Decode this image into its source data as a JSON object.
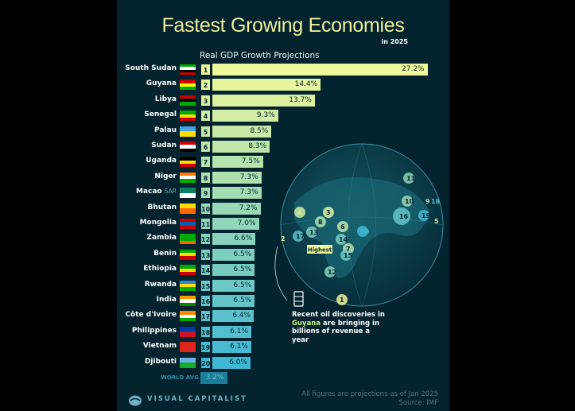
{
  "header": {
    "title": "Fastest Growing Economies",
    "subtitle": "in 2025"
  },
  "chart_data": {
    "type": "bar",
    "title": "Real GDP Growth Projections",
    "categories": [
      "South Sudan",
      "Guyana",
      "Libya",
      "Senegal",
      "Palau",
      "Sudan",
      "Uganda",
      "Niger",
      "Macao",
      "Bhutan",
      "Mongolia",
      "Zambia",
      "Benin",
      "Ethiopia",
      "Rwanda",
      "India",
      "Côte d'Ivoire",
      "Philippines",
      "Vietnam",
      "Djibouti"
    ],
    "category_suffix": {
      "Macao": "SAR"
    },
    "ranks": [
      1,
      2,
      3,
      4,
      5,
      6,
      7,
      8,
      9,
      10,
      11,
      12,
      13,
      14,
      15,
      16,
      17,
      18,
      19,
      20
    ],
    "values": [
      27.2,
      14.4,
      13.7,
      9.3,
      8.5,
      8.3,
      7.5,
      7.3,
      7.3,
      7.2,
      7.0,
      6.6,
      6.5,
      6.5,
      6.5,
      6.5,
      6.4,
      6.1,
      6.1,
      6.0
    ],
    "labels": [
      "27.2%",
      "14.4%",
      "13.7%",
      "9.3%",
      "8.5%",
      "8.3%",
      "7.5%",
      "7.3%",
      "7.3%",
      "7.2%",
      "7.0%",
      "6.6%",
      "6.5%",
      "6.5%",
      "6.5%",
      "6.5%",
      "6.4%",
      "6.1%",
      "6.1%",
      "6.0%"
    ],
    "unit": "%",
    "reference": {
      "label": "WORLD AVG",
      "value": 3.2,
      "text": "3.2%"
    },
    "colors": {
      "top": "#eef79a",
      "bottom": "#3fb8d6",
      "reference": "#1e7d96"
    }
  },
  "map": {
    "highlight_label": "Highest",
    "numbers": [
      "1",
      "2",
      "3",
      "4",
      "5",
      "6",
      "7",
      "8",
      "9",
      "10",
      "11",
      "12",
      "13",
      "14",
      "15",
      "16",
      "17",
      "18",
      "19",
      "20"
    ]
  },
  "note": {
    "pre": "Recent oil discoveries in ",
    "highlight": "Guyana",
    "post": " are bringing in billions of revenue a year",
    "icon": "oil-barrel-icon"
  },
  "footer": {
    "brand": "VISUAL CAPITALIST",
    "line1": "All figures are projections as of Jan 2025",
    "line2": "Source: IMF"
  }
}
